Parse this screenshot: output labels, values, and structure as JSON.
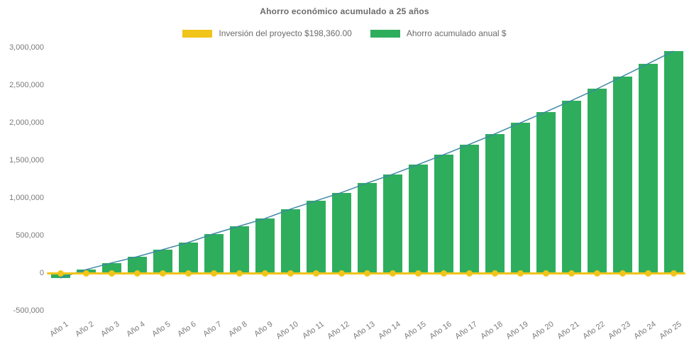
{
  "chart_data": {
    "type": "bar",
    "title": "Ahorro económico acumulado a 25 años",
    "categories": [
      "Año 1",
      "Año 2",
      "Año 3",
      "Año 4",
      "Año 5",
      "Año 6",
      "Año 7",
      "Año 8",
      "Año 9",
      "Año 10",
      "Año 11",
      "Año 12",
      "Año 13",
      "Año 14",
      "Año 15",
      "Año 16",
      "Año 17",
      "Año 18",
      "Año 19",
      "Año 20",
      "Año 21",
      "Año 22",
      "Año 23",
      "Año 24",
      "Año 25"
    ],
    "series": [
      {
        "name": "Inversión del proyecto $198,360.00",
        "type": "line",
        "color": "#F0C419",
        "plotted_value": 0,
        "point_style": "circle"
      },
      {
        "name": "Ahorro acumulado anual $",
        "type": "bar",
        "color": "#2EAE5D",
        "values": [
          -60000,
          50000,
          140000,
          222000,
          316000,
          410000,
          527000,
          628000,
          728000,
          855000,
          965000,
          1075000,
          1200000,
          1318000,
          1447000,
          1578000,
          1715000,
          1855000,
          2002000,
          2148000,
          2298000,
          2453000,
          2620000,
          2787000,
          2957000
        ]
      }
    ],
    "yticks": {
      "labels": [
        "3,000,000",
        "2,500,000",
        "2,000,000",
        "1,500,000",
        "1,000,000",
        "500,000",
        "0",
        "-500,000"
      ],
      "values": [
        3000000,
        2500000,
        2000000,
        1500000,
        1000000,
        500000,
        0,
        -500000
      ]
    },
    "ylim": [
      -500000,
      3000000
    ],
    "xlabel_rotation_deg": -35,
    "grid": false,
    "legend_position": "top",
    "bar_top_edge_color": "#3E89A3",
    "title_color": "#6B6B6B",
    "axis_text_color": "#7A7A7A",
    "background": "#FFFFFF"
  }
}
